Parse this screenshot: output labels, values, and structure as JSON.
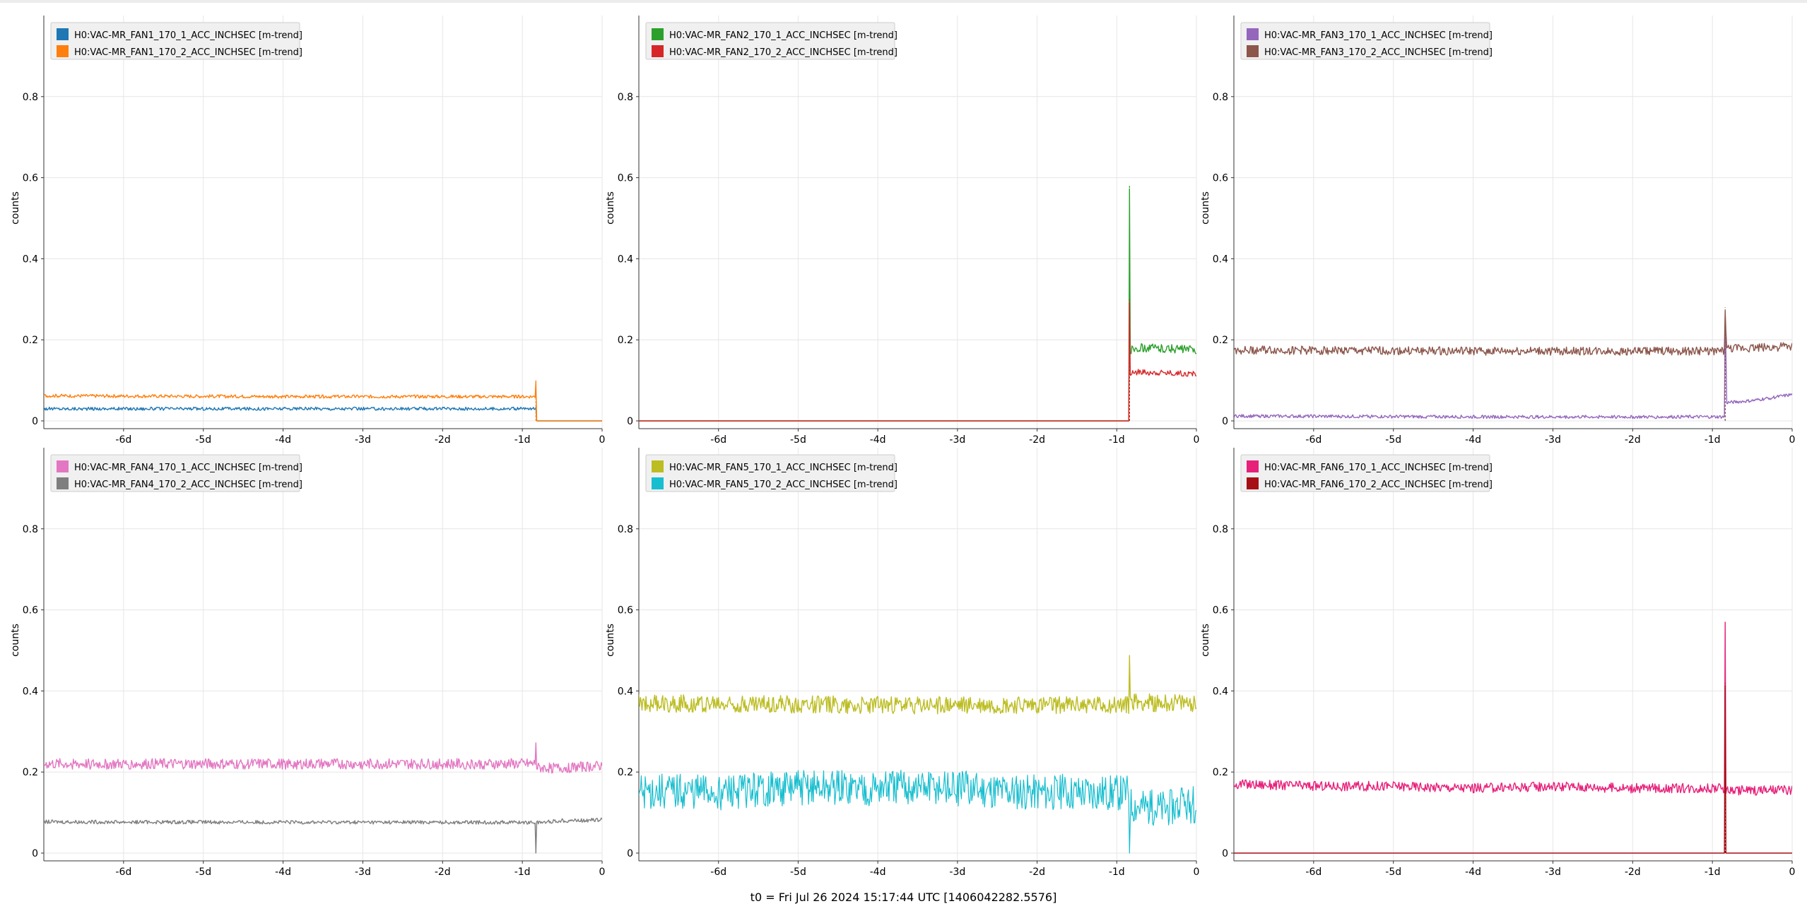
{
  "footer": {
    "text": "t0 = Fri Jul 26 2024 15:17:44 UTC [1406042282.5576]"
  },
  "chart_data": [
    {
      "type": "line",
      "ylabel": "counts",
      "ylim": [
        0,
        1
      ],
      "yticks": [
        0,
        0.2,
        0.4,
        0.6,
        0.8
      ],
      "xlim": [
        -7,
        0
      ],
      "xticks": [
        "-6d",
        "-5d",
        "-4d",
        "-3d",
        "-2d",
        "-1d",
        "0"
      ],
      "legend": "top-left",
      "series": [
        {
          "name": "H0:VAC-MR_FAN1_170_1_ACC_INCHSEC [m-trend]",
          "color": "#1f77b4",
          "x": [
            -7,
            -4,
            -1.3,
            -0.83,
            -0.82,
            0
          ],
          "y": [
            0.03,
            0.03,
            0.03,
            0.03,
            0.0,
            0.0
          ]
        },
        {
          "name": "H0:VAC-MR_FAN1_170_2_ACC_INCHSEC [m-trend]",
          "color": "#ff7f0e",
          "x": [
            -7,
            -4,
            -1.3,
            -0.84,
            -0.83,
            -0.82,
            0
          ],
          "y": [
            0.062,
            0.06,
            0.06,
            0.06,
            0.1,
            0.0,
            0.0
          ]
        }
      ]
    },
    {
      "type": "line",
      "ylabel": "counts",
      "ylim": [
        0,
        1
      ],
      "yticks": [
        0,
        0.2,
        0.4,
        0.6,
        0.8
      ],
      "xlim": [
        -7,
        0
      ],
      "xticks": [
        "-6d",
        "-5d",
        "-4d",
        "-3d",
        "-2d",
        "-1d",
        "0"
      ],
      "legend": "top-left",
      "series": [
        {
          "name": "H0:VAC-MR_FAN2_170_1_ACC_INCHSEC [m-trend]",
          "color": "#2ca02c",
          "x": [
            -7,
            -0.85,
            -0.84,
            -0.83,
            -0.8,
            -0.6,
            0
          ],
          "y": [
            0.0,
            0.0,
            0.58,
            0.17,
            0.18,
            0.18,
            0.175
          ]
        },
        {
          "name": "H0:VAC-MR_FAN2_170_2_ACC_INCHSEC [m-trend]",
          "color": "#d62728",
          "x": [
            -7,
            -0.85,
            -0.84,
            -0.83,
            -0.8,
            -0.6,
            0
          ],
          "y": [
            0.0,
            0.0,
            0.3,
            0.11,
            0.12,
            0.12,
            0.115
          ]
        }
      ]
    },
    {
      "type": "line",
      "ylabel": "counts",
      "ylim": [
        0,
        1
      ],
      "yticks": [
        0,
        0.2,
        0.4,
        0.6,
        0.8
      ],
      "xlim": [
        -7,
        0
      ],
      "xticks": [
        "-6d",
        "-5d",
        "-4d",
        "-3d",
        "-2d",
        "-1d",
        "0"
      ],
      "legend": "top-left",
      "series": [
        {
          "name": "H0:VAC-MR_FAN3_170_1_ACC_INCHSEC [m-trend]",
          "color": "#9467bd",
          "x": [
            -7,
            -4,
            -1,
            -0.85,
            -0.84,
            -0.82,
            -0.5,
            0
          ],
          "y": [
            0.012,
            0.01,
            0.01,
            0.01,
            0.27,
            0.045,
            0.05,
            0.065
          ]
        },
        {
          "name": "H0:VAC-MR_FAN3_170_2_ACC_INCHSEC [m-trend]",
          "color": "#8c564b",
          "x": [
            -7,
            -4,
            -1,
            -0.85,
            -0.84,
            -0.82,
            -0.5,
            0
          ],
          "y": [
            0.175,
            0.172,
            0.172,
            0.172,
            0.28,
            0.177,
            0.18,
            0.183
          ]
        }
      ]
    },
    {
      "type": "line",
      "ylabel": "counts",
      "ylim": [
        0,
        1
      ],
      "yticks": [
        0,
        0.2,
        0.4,
        0.6,
        0.8
      ],
      "xlim": [
        -7,
        0
      ],
      "xticks": [
        "-6d",
        "-5d",
        "-4d",
        "-3d",
        "-2d",
        "-1d",
        "0"
      ],
      "legend": "top-left",
      "series": [
        {
          "name": "H0:VAC-MR_FAN4_170_1_ACC_INCHSEC [m-trend]",
          "color": "#e377c2",
          "x": [
            -7,
            -4,
            -0.84,
            -0.83,
            -0.82,
            -0.5,
            0
          ],
          "y": [
            0.22,
            0.22,
            0.22,
            0.28,
            0.21,
            0.21,
            0.215
          ]
        },
        {
          "name": "H0:VAC-MR_FAN4_170_2_ACC_INCHSEC [m-trend]",
          "color": "#7f7f7f",
          "x": [
            -7,
            -4,
            -0.84,
            -0.83,
            -0.82,
            -0.5,
            0
          ],
          "y": [
            0.077,
            0.076,
            0.076,
            0.0,
            0.075,
            0.08,
            0.082
          ]
        }
      ]
    },
    {
      "type": "line",
      "ylabel": "counts",
      "ylim": [
        0,
        1
      ],
      "yticks": [
        0,
        0.2,
        0.4,
        0.6,
        0.8
      ],
      "xlim": [
        -7,
        0
      ],
      "xticks": [
        "-6d",
        "-5d",
        "-4d",
        "-3d",
        "-2d",
        "-1d",
        "0"
      ],
      "legend": "top-left",
      "series": [
        {
          "name": "H0:VAC-MR_FAN5_170_1_ACC_INCHSEC [m-trend]",
          "color": "#bcbd22",
          "x": [
            -7,
            -4,
            -0.85,
            -0.84,
            -0.83,
            -0.5,
            0
          ],
          "y": [
            0.37,
            0.365,
            0.365,
            0.49,
            0.375,
            0.37,
            0.37
          ]
        },
        {
          "name": "H0:VAC-MR_FAN5_170_2_ACC_INCHSEC [m-trend]",
          "color": "#17becf",
          "x": [
            -7,
            -6,
            -5,
            -4,
            -3,
            -2,
            -1,
            -0.85,
            -0.84,
            -0.83,
            -0.5,
            0
          ],
          "y": [
            0.15,
            0.15,
            0.16,
            0.16,
            0.16,
            0.15,
            0.15,
            0.15,
            0.0,
            0.12,
            0.11,
            0.12
          ]
        }
      ]
    },
    {
      "type": "line",
      "ylabel": "counts",
      "ylim": [
        0,
        1
      ],
      "yticks": [
        0,
        0.2,
        0.4,
        0.6,
        0.8
      ],
      "xlim": [
        -7,
        0
      ],
      "xticks": [
        "-6d",
        "-5d",
        "-4d",
        "-3d",
        "-2d",
        "-1d",
        "0"
      ],
      "legend": "top-left",
      "series": [
        {
          "name": "H0:VAC-MR_FAN6_170_1_ACC_INCHSEC [m-trend]",
          "color": "#e7207a",
          "x": [
            -7,
            -6,
            -5,
            -4,
            -3,
            -2,
            -1,
            -0.85,
            -0.84,
            -0.83,
            -0.5,
            0
          ],
          "y": [
            0.17,
            0.165,
            0.165,
            0.16,
            0.165,
            0.16,
            0.16,
            0.16,
            0.57,
            0.155,
            0.155,
            0.155
          ]
        },
        {
          "name": "H0:VAC-MR_FAN6_170_2_ACC_INCHSEC [m-trend]",
          "color": "#a50f15",
          "x": [
            -7,
            -4,
            -0.85,
            -0.84,
            -0.83,
            0
          ],
          "y": [
            0.0,
            0.0,
            0.0,
            0.42,
            0.0,
            0.0
          ]
        }
      ]
    }
  ]
}
